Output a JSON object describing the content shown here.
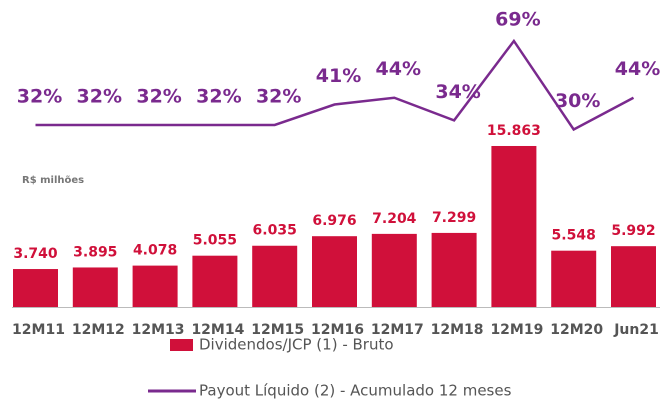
{
  "chart_data": {
    "type": "bar",
    "y_label": "R$ milhões",
    "categories": [
      "12M11",
      "12M12",
      "12M13",
      "12M14",
      "12M15",
      "12M16",
      "12M17",
      "12M18",
      "12M19",
      "12M20",
      "Jun21"
    ],
    "ylim": [
      0,
      16000
    ],
    "y2lim": [
      0,
      80
    ],
    "series": [
      {
        "name": "Dividendos/JCP (1) - Bruto",
        "color": "#d0103a",
        "type": "bar",
        "values": [
          3740,
          3895,
          4078,
          5055,
          6035,
          6976,
          7204,
          7299,
          15863,
          5548,
          5992
        ],
        "value_labels": [
          "3.740",
          "3.895",
          "4.078",
          "5.055",
          "6.035",
          "6.976",
          "7.204",
          "7.299",
          "15.863",
          "5.548",
          "5.992"
        ]
      },
      {
        "name": "Payout Líquido (2) - Acumulado 12 meses",
        "color": "#7a2a8e",
        "type": "line",
        "axis": "y2",
        "values": [
          32,
          32,
          32,
          32,
          32,
          41,
          44,
          34,
          69,
          30,
          44
        ],
        "value_labels": [
          "32%",
          "32%",
          "32%",
          "32%",
          "32%",
          "41%",
          "44%",
          "34%",
          "69%",
          "30%",
          "44%"
        ]
      }
    ]
  }
}
